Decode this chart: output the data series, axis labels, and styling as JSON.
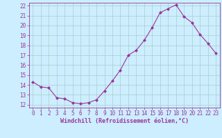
{
  "x": [
    0,
    1,
    2,
    3,
    4,
    5,
    6,
    7,
    8,
    9,
    10,
    11,
    12,
    13,
    14,
    15,
    16,
    17,
    18,
    19,
    20,
    21,
    22,
    23
  ],
  "y": [
    14.3,
    13.8,
    13.7,
    12.7,
    12.6,
    12.2,
    12.1,
    12.2,
    12.5,
    13.4,
    14.4,
    15.5,
    17.0,
    17.5,
    18.5,
    19.8,
    21.3,
    21.7,
    22.1,
    20.9,
    20.3,
    19.1,
    18.2,
    17.2
  ],
  "line_color": "#993399",
  "marker": "D",
  "marker_size": 2.0,
  "line_width": 0.8,
  "background_color": "#cceeff",
  "grid_color": "#aacccc",
  "xlabel": "Windchill (Refroidissement éolien,°C)",
  "xlabel_color": "#993399",
  "tick_color": "#993399",
  "ylim": [
    12,
    22
  ],
  "xlim": [
    -0.5,
    23.5
  ],
  "yticks": [
    12,
    13,
    14,
    15,
    16,
    17,
    18,
    19,
    20,
    21,
    22
  ],
  "xticks": [
    0,
    1,
    2,
    3,
    4,
    5,
    6,
    7,
    8,
    9,
    10,
    11,
    12,
    13,
    14,
    15,
    16,
    17,
    18,
    19,
    20,
    21,
    22,
    23
  ],
  "tick_labelsize": 5.5,
  "xlabel_fontsize": 6.0,
  "xlabel_fontweight": "bold"
}
